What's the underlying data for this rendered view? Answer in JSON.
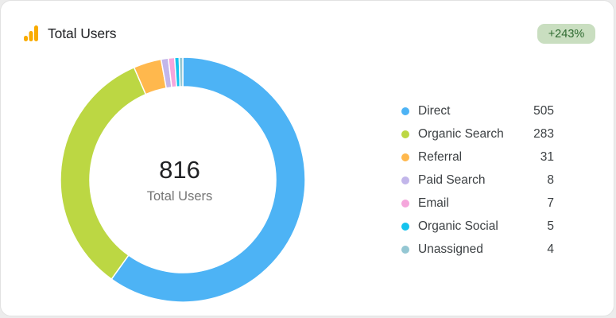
{
  "header": {
    "title": "Total Users",
    "change_badge": "+243%",
    "icon": "analytics-bar-icon",
    "icon_color": "#f9ab00",
    "badge_bg_color": "#c9dec0",
    "badge_text_color": "#2e6a30"
  },
  "chart_data": {
    "type": "pie",
    "donut": true,
    "center_value": "816",
    "center_label": "Total Users",
    "categories": [
      "Direct",
      "Organic Search",
      "Referral",
      "Paid Search",
      "Email",
      "Organic Social",
      "Unassigned"
    ],
    "values": [
      505,
      283,
      31,
      8,
      7,
      5,
      4
    ],
    "colors": [
      "#4db3f5",
      "#bcd743",
      "#ffb84d",
      "#c2b6ea",
      "#f5a6dc",
      "#14c3ee",
      "#94c7d3"
    ],
    "start_angle_deg": 0,
    "direction": "clockwise",
    "legend_position": "right"
  }
}
